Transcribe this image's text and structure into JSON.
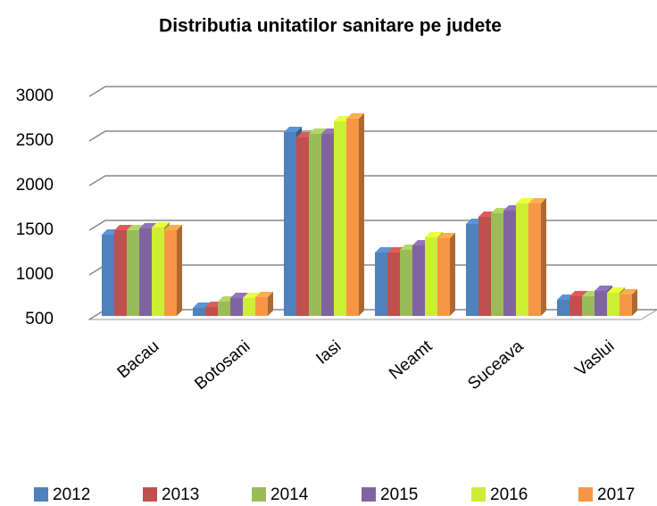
{
  "chart_data": {
    "type": "bar3d",
    "title": "Distributia    unitatilor    sanitare    pe judete",
    "categories": [
      "Bacau",
      "Botosani",
      "Iasi",
      "Neamt",
      "Suceava",
      "Vaslui"
    ],
    "series": [
      {
        "name": "2012",
        "color": "#4f81bd",
        "values": [
          1450,
          630,
          2600,
          1250,
          1570,
          720
        ]
      },
      {
        "name": "2013",
        "color": "#c0504d",
        "values": [
          1500,
          640,
          2540,
          1250,
          1650,
          760
        ]
      },
      {
        "name": "2014",
        "color": "#9bbb59",
        "values": [
          1500,
          700,
          2580,
          1280,
          1690,
          760
        ]
      },
      {
        "name": "2015",
        "color": "#8064a2",
        "values": [
          1520,
          740,
          2580,
          1330,
          1720,
          820
        ]
      },
      {
        "name": "2016",
        "color": "#ccee33",
        "values": [
          1530,
          740,
          2720,
          1420,
          1800,
          800
        ]
      },
      {
        "name": "2017",
        "color": "#f79646",
        "values": [
          1500,
          750,
          2750,
          1410,
          1800,
          780
        ]
      }
    ],
    "ylim": [
      500,
      3000
    ],
    "yticks": [
      500,
      1000,
      1500,
      2000,
      2500,
      3000
    ],
    "grid": true
  }
}
